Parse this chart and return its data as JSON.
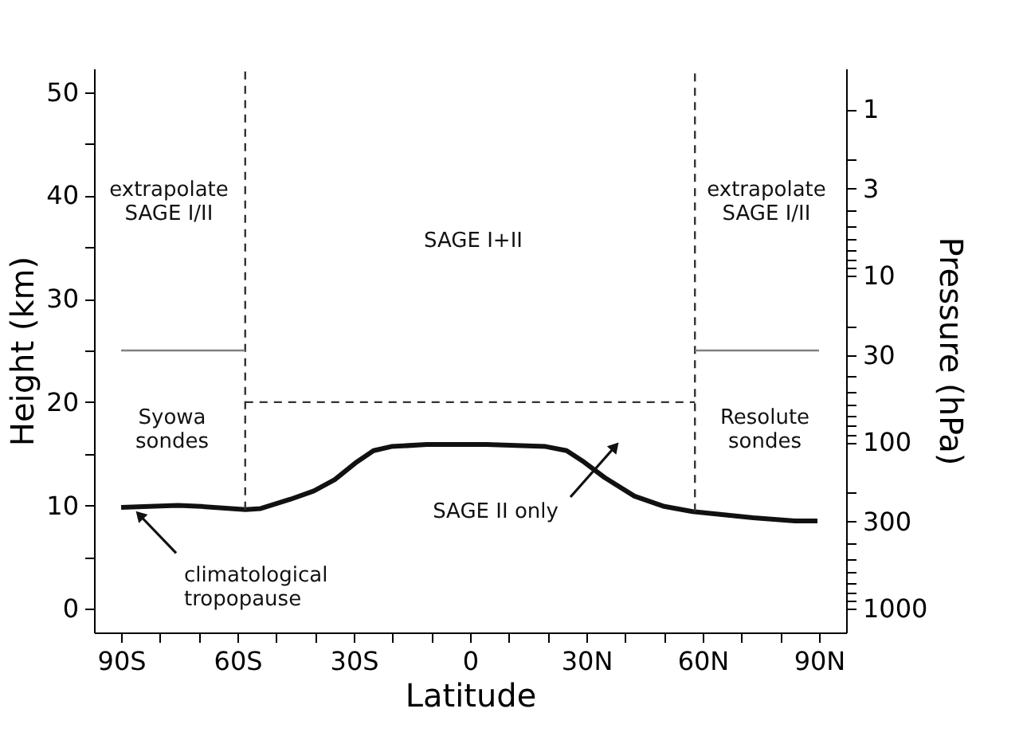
{
  "chart_data": {
    "type": "line",
    "xlabel": "Latitude",
    "ylabel": "Height (km)",
    "y2label": "Pressure (hPa)",
    "xlim": [
      -97,
      97
    ],
    "ylim": [
      -2.3,
      52.3
    ],
    "y2lim": [
      1389,
      0.569
    ],
    "log": "y2",
    "xticks": [
      {
        "value": -90,
        "label": "90S"
      },
      {
        "value": -80,
        "label": null
      },
      {
        "value": -70,
        "label": null
      },
      {
        "value": -60,
        "label": "60S"
      },
      {
        "value": -50,
        "label": null
      },
      {
        "value": -40,
        "label": null
      },
      {
        "value": -30,
        "label": "30S"
      },
      {
        "value": -20,
        "label": null
      },
      {
        "value": -10,
        "label": null
      },
      0,
      {
        "value": 10,
        "label": null
      },
      {
        "value": 20,
        "label": null
      },
      {
        "value": 30,
        "label": "30N"
      },
      {
        "value": 40,
        "label": null
      },
      {
        "value": 50,
        "label": null
      },
      {
        "value": 60,
        "label": "60N"
      },
      {
        "value": 70,
        "label": null
      },
      {
        "value": 80,
        "label": null
      },
      {
        "value": 90,
        "label": "90N"
      }
    ],
    "yticks": [
      0,
      {
        "value": 5,
        "label": null
      },
      10,
      {
        "value": 15,
        "label": null
      },
      20,
      {
        "value": 25,
        "label": null
      },
      30,
      {
        "value": 35,
        "label": null
      },
      40,
      {
        "value": 45,
        "label": null
      },
      50
    ],
    "y2ticks": [
      1,
      {
        "value": 2,
        "label": null
      },
      3,
      {
        "value": 4,
        "label": null
      },
      {
        "value": 5,
        "label": null
      },
      {
        "value": 6,
        "label": null
      },
      {
        "value": 7,
        "label": null
      },
      {
        "value": 8,
        "label": null
      },
      {
        "value": 9,
        "label": null
      },
      10,
      {
        "value": 20,
        "label": null
      },
      30,
      {
        "value": 40,
        "label": null
      },
      {
        "value": 50,
        "label": null
      },
      {
        "value": 60,
        "label": null
      },
      {
        "value": 70,
        "label": null
      },
      {
        "value": 80,
        "label": null
      },
      {
        "value": 90,
        "label": null
      },
      100,
      {
        "value": 200,
        "label": null
      },
      300,
      {
        "value": 400,
        "label": null
      },
      {
        "value": 500,
        "label": null
      },
      {
        "value": 600,
        "label": null
      },
      {
        "value": 700,
        "label": null
      },
      {
        "value": 800,
        "label": null
      },
      {
        "value": 900,
        "label": null
      },
      1000
    ],
    "grid": false,
    "marker": "none",
    "series": [
      {
        "color": "#111111",
        "line_style": "solid",
        "x": [
          -90,
          -75.4,
          -69.3,
          -57.9,
          -54,
          -46.3,
          -40.3,
          -34.9,
          -29.6,
          -24.9,
          -20.3,
          -11.1,
          4.2,
          19.5,
          24.9,
          29.4,
          34.7,
          42.4,
          50.1,
          57.4,
          73,
          83.8,
          89.6
        ],
        "values": [
          9.8,
          10.0,
          9.9,
          9.6,
          9.7,
          10.6,
          11.4,
          12.5,
          14.1,
          15.3,
          15.7,
          15.9,
          15.9,
          15.7,
          15.3,
          14.2,
          12.7,
          10.9,
          9.9,
          9.4,
          8.8,
          8.5,
          8.5
        ]
      },
      {
        "color": "#333333",
        "line_style": "dashed",
        "x": [
          -58,
          -58
        ],
        "values": [
          9.6,
          52.3
        ]
      },
      {
        "color": "#333333",
        "line_style": "dashed",
        "x": [
          58,
          58
        ],
        "values": [
          9.4,
          52.3
        ]
      },
      {
        "color": "#333333",
        "line_style": "dashed",
        "x": [
          -58,
          58
        ],
        "values": [
          20,
          20
        ]
      },
      {
        "color": "#808080",
        "line_style": "solid",
        "x": [
          -90,
          -58
        ],
        "values": [
          25,
          25
        ]
      },
      {
        "color": "#808080",
        "line_style": "solid",
        "x": [
          58,
          90
        ],
        "values": [
          25,
          25
        ]
      }
    ],
    "annotations": [
      "extrapolate\nSAGE I/II",
      "SAGE I+II",
      "extrapolate\nSAGE I/II",
      "Syowa\nsondes",
      "Resolute\nsondes",
      {
        "text": "climatological\ntropopause",
        "x": -86.1,
        "y": 9.4
      },
      "SAGE II only"
    ]
  }
}
